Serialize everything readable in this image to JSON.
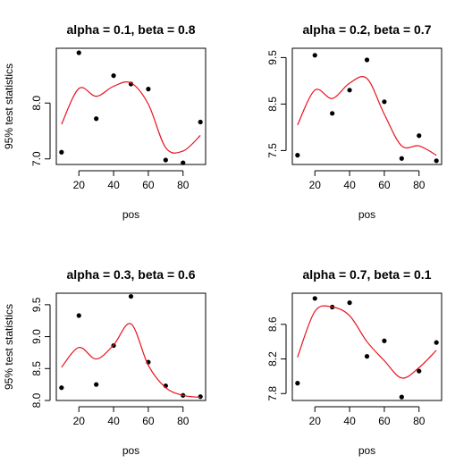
{
  "chart_data": [
    {
      "type": "scatter",
      "title": "alpha = 0.1, beta = 0.8",
      "xlabel": "pos",
      "ylabel": "95% test statistics",
      "xlim": [
        7,
        93
      ],
      "ylim": [
        6.9,
        8.98
      ],
      "xticks": [
        20,
        40,
        60,
        80
      ],
      "yticks": [
        7.0,
        8.0
      ],
      "series": [
        {
          "kind": "points",
          "x": [
            10,
            20,
            30,
            40,
            50,
            60,
            70,
            80,
            90
          ],
          "y": [
            7.12,
            8.9,
            7.72,
            8.49,
            8.34,
            8.25,
            6.98,
            6.93,
            7.66
          ]
        },
        {
          "kind": "curve",
          "color": "#e8121e",
          "x": [
            10,
            20,
            30,
            40,
            50,
            60,
            70,
            80,
            90
          ],
          "y": [
            7.62,
            8.26,
            8.12,
            8.3,
            8.36,
            7.98,
            7.2,
            7.14,
            7.42
          ]
        }
      ]
    },
    {
      "type": "scatter",
      "title": "alpha = 0.2, beta = 0.7",
      "xlabel": "pos",
      "ylabel": "",
      "xlim": [
        7,
        93
      ],
      "ylim": [
        7.2,
        9.7
      ],
      "xticks": [
        20,
        40,
        60,
        80
      ],
      "yticks": [
        7.5,
        8.5,
        9.5
      ],
      "series": [
        {
          "kind": "points",
          "x": [
            10,
            20,
            30,
            40,
            50,
            60,
            70,
            80,
            90
          ],
          "y": [
            7.4,
            9.55,
            8.3,
            8.8,
            9.45,
            8.55,
            7.33,
            7.82,
            7.28
          ]
        },
        {
          "kind": "curve",
          "color": "#e8121e",
          "x": [
            10,
            20,
            30,
            40,
            50,
            60,
            70,
            80,
            90
          ],
          "y": [
            8.05,
            8.8,
            8.62,
            8.95,
            9.05,
            8.28,
            7.6,
            7.6,
            7.4
          ]
        }
      ]
    },
    {
      "type": "scatter",
      "title": "alpha = 0.3, beta = 0.6",
      "xlabel": "pos",
      "ylabel": "95% test statistics",
      "xlim": [
        7,
        93
      ],
      "ylim": [
        8.0,
        9.68
      ],
      "xticks": [
        20,
        40,
        60,
        80
      ],
      "yticks": [
        8.0,
        8.5,
        9.0,
        9.5
      ],
      "series": [
        {
          "kind": "points",
          "x": [
            10,
            20,
            30,
            40,
            50,
            60,
            70,
            80,
            90
          ],
          "y": [
            8.2,
            9.33,
            8.25,
            8.86,
            9.63,
            8.6,
            8.23,
            8.08,
            8.06
          ]
        },
        {
          "kind": "curve",
          "color": "#e8121e",
          "x": [
            10,
            20,
            30,
            40,
            50,
            60,
            70,
            80,
            90
          ],
          "y": [
            8.52,
            8.83,
            8.65,
            8.87,
            9.2,
            8.55,
            8.2,
            8.08,
            8.05
          ]
        }
      ]
    },
    {
      "type": "scatter",
      "title": "alpha = 0.7, beta = 0.1",
      "xlabel": "pos",
      "ylabel": "",
      "xlim": [
        7,
        93
      ],
      "ylim": [
        7.72,
        8.96
      ],
      "xticks": [
        20,
        40,
        60,
        80
      ],
      "yticks": [
        7.8,
        8.2,
        8.6
      ],
      "series": [
        {
          "kind": "points",
          "x": [
            10,
            20,
            30,
            40,
            50,
            60,
            70,
            80,
            90
          ],
          "y": [
            7.92,
            8.9,
            8.8,
            8.85,
            8.23,
            8.41,
            7.76,
            8.06,
            8.39
          ]
        },
        {
          "kind": "curve",
          "color": "#e8121e",
          "x": [
            10,
            20,
            30,
            40,
            50,
            60,
            70,
            80,
            90
          ],
          "y": [
            8.22,
            8.75,
            8.8,
            8.7,
            8.4,
            8.18,
            7.98,
            8.1,
            8.3
          ]
        }
      ]
    }
  ]
}
